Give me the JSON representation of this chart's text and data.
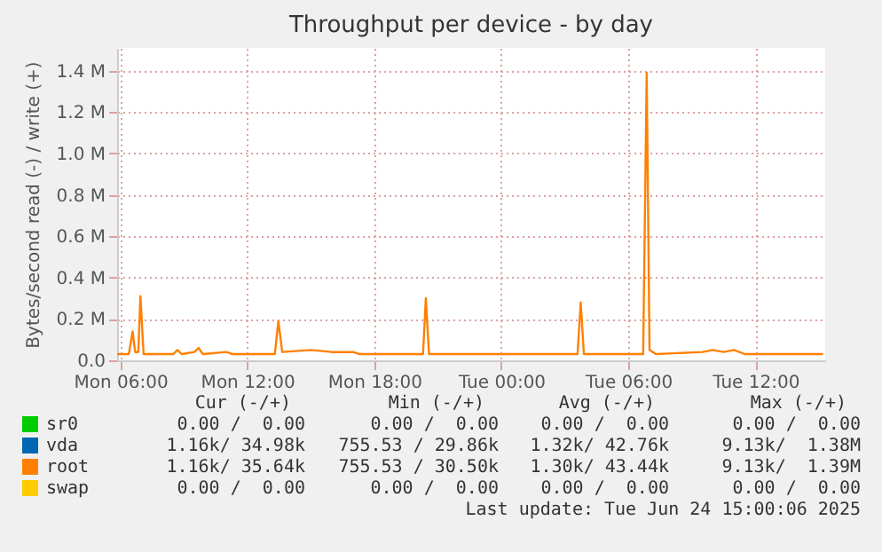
{
  "chart_data": {
    "type": "line",
    "title": "Throughput per device - by day",
    "ylabel": "Bytes/second read (-) / write (+)",
    "x": [
      "2025-06-23T05:51",
      "2025-06-23T06:24",
      "2025-06-23T06:35",
      "2025-06-23T06:42",
      "2025-06-23T06:51",
      "2025-06-23T06:57",
      "2025-06-23T07:06",
      "2025-06-23T08:30",
      "2025-06-23T08:42",
      "2025-06-23T08:54",
      "2025-06-23T09:30",
      "2025-06-23T09:42",
      "2025-06-23T09:54",
      "2025-06-23T11:00",
      "2025-06-23T11:18",
      "2025-06-23T13:18",
      "2025-06-23T13:28",
      "2025-06-23T13:39",
      "2025-06-23T15:00",
      "2025-06-23T16:00",
      "2025-06-23T17:00",
      "2025-06-23T17:18",
      "2025-06-23T20:18",
      "2025-06-23T20:26",
      "2025-06-23T20:35",
      "2025-06-24T03:36",
      "2025-06-24T03:45",
      "2025-06-24T03:54",
      "2025-06-24T06:42",
      "2025-06-24T06:52",
      "2025-06-24T07:00",
      "2025-06-24T07:18",
      "2025-06-24T09:30",
      "2025-06-24T10:00",
      "2025-06-24T10:30",
      "2025-06-24T11:00",
      "2025-06-24T11:30",
      "2025-06-24T15:12"
    ],
    "series": [
      {
        "name": "sr0",
        "color": "#00cc00",
        "values": [
          null,
          null,
          null,
          null,
          null,
          null,
          null,
          null,
          null,
          null,
          null,
          null,
          null,
          null,
          null,
          null,
          null,
          null,
          null,
          null,
          null,
          null,
          null,
          null,
          null,
          null,
          null,
          null,
          null,
          null,
          null,
          null,
          null,
          null,
          null,
          null,
          null,
          null
        ]
      },
      {
        "name": "vda",
        "color": "#0066b3",
        "values": [
          null,
          null,
          null,
          null,
          null,
          null,
          null,
          null,
          null,
          null,
          null,
          null,
          null,
          null,
          null,
          null,
          null,
          null,
          null,
          null,
          null,
          null,
          null,
          null,
          null,
          null,
          null,
          null,
          null,
          null,
          null,
          null,
          null,
          null,
          null,
          null,
          null,
          null
        ]
      },
      {
        "name": "root",
        "color": "#ff8000",
        "values": [
          0.03,
          0.03,
          0.14,
          0.04,
          0.04,
          0.31,
          0.03,
          0.03,
          0.05,
          0.03,
          0.04,
          0.06,
          0.03,
          0.04,
          0.03,
          0.03,
          0.19,
          0.04,
          0.05,
          0.04,
          0.04,
          0.03,
          0.03,
          0.3,
          0.03,
          0.03,
          0.28,
          0.03,
          0.03,
          1.39,
          0.05,
          0.03,
          0.04,
          0.05,
          0.04,
          0.05,
          0.03,
          0.03
        ]
      },
      {
        "name": "swap",
        "color": "#ffcc00",
        "values": [
          null,
          null,
          null,
          null,
          null,
          null,
          null,
          null,
          null,
          null,
          null,
          null,
          null,
          null,
          null,
          null,
          null,
          null,
          null,
          null,
          null,
          null,
          null,
          null,
          null,
          null,
          null,
          null,
          null,
          null,
          null,
          null,
          null,
          null,
          null,
          null,
          null,
          null
        ]
      }
    ],
    "xlim": [
      "2025-06-23T05:51",
      "2025-06-24T15:18"
    ],
    "xticks": [
      {
        "value": "2025-06-23T06:00",
        "label": "Mon 06:00"
      },
      {
        "value": "2025-06-23T12:00",
        "label": "Mon 12:00"
      },
      {
        "value": "2025-06-23T18:00",
        "label": "Mon 18:00"
      },
      {
        "value": "2025-06-24T00:00",
        "label": "Tue 00:00"
      },
      {
        "value": "2025-06-24T06:00",
        "label": "Tue 06:00"
      },
      {
        "value": "2025-06-24T12:00",
        "label": "Tue 12:00"
      }
    ],
    "ylim": [
      0,
      1.51
    ],
    "yticks": [
      {
        "value": 0,
        "label": "0.0"
      },
      {
        "value": 0.2,
        "label": "0.2 M"
      },
      {
        "value": 0.4,
        "label": "0.4 M"
      },
      {
        "value": 0.6,
        "label": "0.6 M"
      },
      {
        "value": 0.8,
        "label": "0.8 M"
      },
      {
        "value": 1.0,
        "label": "1.0 M"
      },
      {
        "value": 1.2,
        "label": "1.2 M"
      },
      {
        "value": 1.4,
        "label": "1.4 M"
      }
    ],
    "grid": true,
    "legend": "bottom left",
    "annotations": [
      "Cur (-/+)",
      "Min (-/+)",
      "Avg (-/+)",
      "Max (-/+)",
      "0.00 /  0.00",
      "0.00 /  0.00",
      "0.00 /  0.00",
      "0.00 /  0.00",
      "1.16k/ 34.98k",
      "755.53 / 29.86k",
      "1.32k/ 42.76k",
      "9.13k/  1.38M",
      "1.16k/ 35.64k",
      "755.53 / 30.50k",
      "1.30k/ 43.44k",
      "9.13k/  1.39M",
      "0.00 /  0.00",
      "0.00 /  0.00",
      "0.00 /  0.00",
      "0.00 /  0.00",
      "Last update: Tue Jun 24 15:00:06 2025"
    ]
  }
}
